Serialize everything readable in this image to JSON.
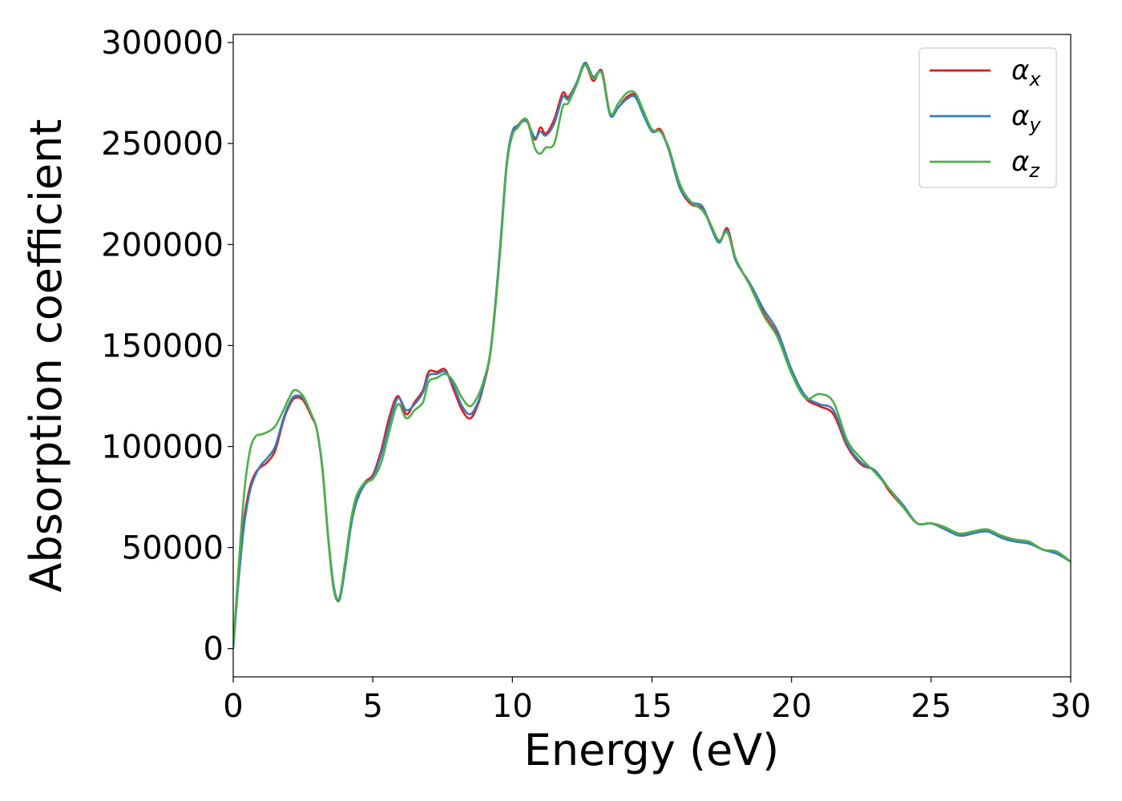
{
  "chart_data": {
    "type": "line",
    "title": "",
    "xlabel": "Energy (eV)",
    "ylabel": "Absorption coefficient",
    "xlim": [
      0,
      30
    ],
    "ylim": [
      -14000,
      304000
    ],
    "xticks": [
      0,
      5,
      10,
      15,
      20,
      25,
      30
    ],
    "yticks": [
      0,
      50000,
      100000,
      150000,
      200000,
      250000,
      300000
    ],
    "xtick_labels": [
      "0",
      "5",
      "10",
      "15",
      "20",
      "25",
      "30"
    ],
    "ytick_labels": [
      "0",
      "50000",
      "100000",
      "150000",
      "200000",
      "250000",
      "300000"
    ],
    "grid": false,
    "legend_position": "top-right",
    "series": [
      {
        "name": "αx",
        "legend_base": "α",
        "legend_sub": "x",
        "color": "#e41a1c",
        "x": [
          0,
          0.2,
          0.4,
          0.6,
          0.8,
          1.0,
          1.2,
          1.5,
          1.8,
          2.0,
          2.2,
          2.5,
          2.8,
          3.0,
          3.2,
          3.4,
          3.6,
          3.8,
          4.0,
          4.2,
          4.4,
          4.7,
          5.0,
          5.3,
          5.6,
          5.9,
          6.2,
          6.5,
          6.8,
          7.0,
          7.3,
          7.6,
          7.9,
          8.2,
          8.5,
          8.8,
          9.0,
          9.2,
          9.4,
          9.6,
          9.8,
          10.0,
          10.2,
          10.5,
          10.8,
          11.0,
          11.2,
          11.5,
          11.8,
          12.0,
          12.3,
          12.6,
          12.9,
          13.2,
          13.5,
          13.8,
          14.1,
          14.4,
          14.7,
          15.0,
          15.3,
          15.6,
          16.0,
          16.4,
          16.8,
          17.1,
          17.4,
          17.7,
          18.0,
          18.5,
          19.0,
          19.5,
          20.0,
          20.5,
          21.0,
          21.5,
          22.0,
          22.5,
          23.0,
          23.5,
          24.0,
          24.5,
          25.0,
          25.5,
          26.0,
          26.5,
          27.0,
          27.5,
          28.0,
          28.5,
          29.0,
          29.5,
          30.0
        ],
        "y": [
          0,
          38000,
          65000,
          80000,
          87000,
          90000,
          92000,
          98000,
          113000,
          120000,
          124000,
          123000,
          115000,
          108000,
          88000,
          55000,
          30000,
          24000,
          40000,
          60000,
          72000,
          82000,
          86000,
          98000,
          115000,
          125000,
          116000,
          122000,
          128000,
          137000,
          137000,
          138000,
          128000,
          118000,
          114000,
          122000,
          132000,
          145000,
          172000,
          205000,
          240000,
          255000,
          259000,
          262000,
          252000,
          258000,
          255000,
          262000,
          275000,
          273000,
          280000,
          289000,
          281000,
          286000,
          265000,
          268000,
          273000,
          274000,
          265000,
          256000,
          257000,
          247000,
          228000,
          220000,
          218000,
          210000,
          201000,
          208000,
          193000,
          180000,
          166000,
          155000,
          138000,
          124000,
          120000,
          116000,
          100000,
          91000,
          88000,
          78000,
          70000,
          62000,
          62000,
          60000,
          56000,
          57000,
          59000,
          55000,
          53000,
          52000,
          49000,
          47000,
          43000
        ]
      },
      {
        "name": "αy",
        "legend_base": "α",
        "legend_sub": "y",
        "color": "#377eb8",
        "x": [
          0,
          0.2,
          0.4,
          0.6,
          0.8,
          1.0,
          1.2,
          1.5,
          1.8,
          2.0,
          2.2,
          2.5,
          2.8,
          3.0,
          3.2,
          3.4,
          3.6,
          3.8,
          4.0,
          4.2,
          4.4,
          4.7,
          5.0,
          5.3,
          5.6,
          5.9,
          6.2,
          6.5,
          6.8,
          7.0,
          7.3,
          7.6,
          7.9,
          8.2,
          8.5,
          8.8,
          9.0,
          9.2,
          9.4,
          9.6,
          9.8,
          10.0,
          10.2,
          10.5,
          10.8,
          11.0,
          11.2,
          11.5,
          11.8,
          12.0,
          12.3,
          12.6,
          12.9,
          13.2,
          13.5,
          13.8,
          14.1,
          14.4,
          14.7,
          15.0,
          15.3,
          15.6,
          16.0,
          16.4,
          16.8,
          17.1,
          17.4,
          17.7,
          18.0,
          18.5,
          19.0,
          19.5,
          20.0,
          20.5,
          21.0,
          21.5,
          22.0,
          22.5,
          23.0,
          23.5,
          24.0,
          24.5,
          25.0,
          25.5,
          26.0,
          26.5,
          27.0,
          27.5,
          28.0,
          28.5,
          29.0,
          29.5,
          30.0
        ],
        "y": [
          0,
          35000,
          62000,
          78000,
          86000,
          91000,
          94000,
          100000,
          114000,
          121000,
          125000,
          124000,
          116000,
          108000,
          89000,
          56000,
          31000,
          24000,
          39000,
          59000,
          72000,
          81000,
          85000,
          96000,
          112000,
          124000,
          118000,
          121000,
          127000,
          135000,
          136000,
          137000,
          130000,
          120000,
          116000,
          123000,
          133000,
          146000,
          172000,
          206000,
          241000,
          256000,
          259000,
          261000,
          253000,
          256000,
          254000,
          260000,
          273000,
          272000,
          280000,
          290000,
          283000,
          285000,
          264000,
          268000,
          272000,
          273000,
          264000,
          256000,
          256000,
          247000,
          228000,
          221000,
          219000,
          209000,
          201000,
          207000,
          192000,
          181000,
          168000,
          157000,
          138000,
          125000,
          121000,
          118000,
          101000,
          92000,
          88000,
          79000,
          71000,
          62000,
          62000,
          59000,
          56000,
          57000,
          58000,
          55000,
          53000,
          52000,
          49000,
          47000,
          43000
        ]
      },
      {
        "name": "αz",
        "legend_base": "α",
        "legend_sub": "z",
        "color": "#4daf4a",
        "x": [
          0,
          0.2,
          0.4,
          0.6,
          0.8,
          1.0,
          1.2,
          1.5,
          1.8,
          2.0,
          2.2,
          2.5,
          2.8,
          3.0,
          3.2,
          3.4,
          3.6,
          3.8,
          4.0,
          4.2,
          4.4,
          4.7,
          5.0,
          5.3,
          5.6,
          5.9,
          6.2,
          6.5,
          6.8,
          7.0,
          7.3,
          7.6,
          7.9,
          8.2,
          8.5,
          8.8,
          9.0,
          9.2,
          9.4,
          9.6,
          9.8,
          10.0,
          10.2,
          10.5,
          10.8,
          11.0,
          11.2,
          11.5,
          11.8,
          12.0,
          12.3,
          12.6,
          12.9,
          13.2,
          13.5,
          13.8,
          14.1,
          14.4,
          14.7,
          15.0,
          15.3,
          15.6,
          16.0,
          16.4,
          16.8,
          17.1,
          17.4,
          17.7,
          18.0,
          18.5,
          19.0,
          19.5,
          20.0,
          20.5,
          21.0,
          21.5,
          22.0,
          22.5,
          23.0,
          23.5,
          24.0,
          24.5,
          25.0,
          25.5,
          26.0,
          26.5,
          27.0,
          27.5,
          28.0,
          28.5,
          29.0,
          29.5,
          30.0
        ],
        "y": [
          0,
          42000,
          78000,
          98000,
          105000,
          106000,
          107000,
          110000,
          118000,
          124000,
          128000,
          125000,
          116000,
          108000,
          88000,
          55000,
          29000,
          25000,
          42000,
          62000,
          75000,
          82000,
          84000,
          92000,
          108000,
          121000,
          114000,
          118000,
          122000,
          132000,
          134000,
          136000,
          132000,
          124000,
          120000,
          126000,
          134000,
          145000,
          170000,
          203000,
          239000,
          254000,
          258000,
          262000,
          248000,
          245000,
          248000,
          250000,
          268000,
          270000,
          279000,
          289000,
          282000,
          285000,
          265000,
          270000,
          275000,
          275000,
          266000,
          257000,
          256000,
          248000,
          230000,
          221000,
          217000,
          210000,
          202000,
          206000,
          193000,
          180000,
          165000,
          154000,
          136000,
          124000,
          126000,
          122000,
          103000,
          94000,
          87000,
          79000,
          70000,
          62000,
          62000,
          60000,
          57000,
          58000,
          59000,
          56000,
          54000,
          53000,
          49000,
          48000,
          43000
        ]
      }
    ]
  }
}
